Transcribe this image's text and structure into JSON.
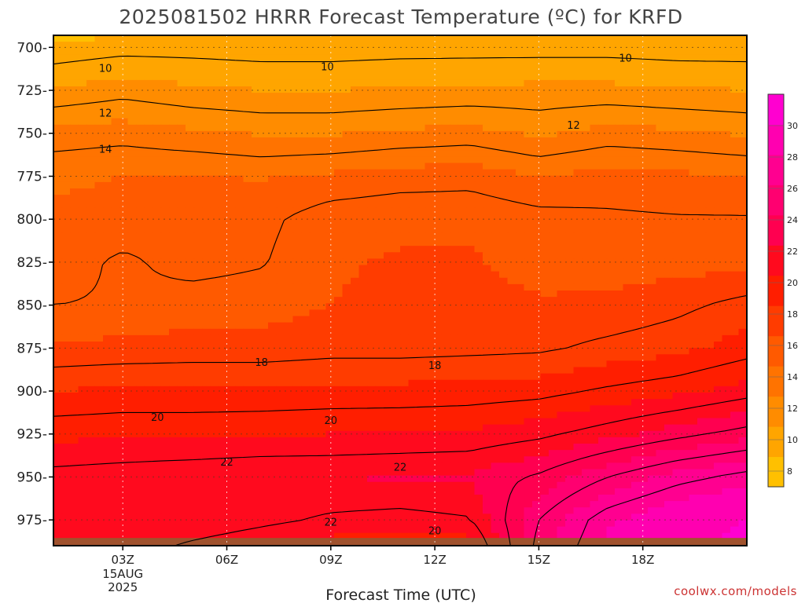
{
  "chart_data": {
    "type": "contour",
    "title": "2025081502 HRRR Forecast Temperature (ºC) for KRFD",
    "xlabel": "Forecast Time (UTC)",
    "ylabel": "",
    "credit": "coolwx.com/models",
    "x_hours": [
      1,
      21
    ],
    "x_ticks": [
      {
        "hour": 3,
        "label": "03Z",
        "sub": [
          "15AUG",
          "2025"
        ]
      },
      {
        "hour": 6,
        "label": "06Z"
      },
      {
        "hour": 9,
        "label": "09Z"
      },
      {
        "hour": 12,
        "label": "12Z"
      },
      {
        "hour": 15,
        "label": "15Z"
      },
      {
        "hour": 18,
        "label": "18Z"
      }
    ],
    "ylim": [
      693,
      990
    ],
    "y_ticks": [
      700,
      725,
      750,
      775,
      800,
      825,
      850,
      875,
      900,
      925,
      950,
      975
    ],
    "y_unit_suffix": "-",
    "colorbar": {
      "ticks": [
        8,
        10,
        12,
        14,
        16,
        18,
        20,
        22,
        24,
        26,
        28,
        30
      ],
      "min": 7,
      "max": 32,
      "colors": [
        "#FFC000",
        "#FFA500",
        "#FF8C00",
        "#FF7300",
        "#FF5A00",
        "#FF3C00",
        "#FF1E00",
        "#FF0A1E",
        "#FF0050",
        "#FF0070",
        "#FF0090",
        "#FF00B0",
        "#FF00D0"
      ]
    },
    "levels": [
      8,
      10,
      12,
      14,
      16,
      18,
      20,
      22,
      24,
      26,
      28
    ],
    "pressures": [
      690,
      700,
      725,
      750,
      775,
      800,
      825,
      850,
      875,
      900,
      925,
      950,
      975,
      990
    ],
    "hours": [
      1,
      3,
      5,
      7,
      9,
      11,
      13,
      15,
      17,
      19,
      21
    ],
    "temperature_grid": [
      [
        8.5,
        8.6,
        8.8,
        8.9,
        8.8,
        8.8,
        8.9,
        9.0,
        9.0,
        9.0,
        9.0
      ],
      [
        9.3,
        9.6,
        9.6,
        9.5,
        9.5,
        9.6,
        9.6,
        9.6,
        9.6,
        9.5,
        9.5
      ],
      [
        11.1,
        11.6,
        11.2,
        11.0,
        11.0,
        11.1,
        11.2,
        11.3,
        11.3,
        11.1,
        11.0
      ],
      [
        13.4,
        13.6,
        13.2,
        12.9,
        12.9,
        13.2,
        13.4,
        12.8,
        13.4,
        13.2,
        12.9
      ],
      [
        14.8,
        15.0,
        15.1,
        14.9,
        15.2,
        15.5,
        15.6,
        15.0,
        15.4,
        15.2,
        15.0
      ],
      [
        15.2,
        15.4,
        15.6,
        15.7,
        16.6,
        16.8,
        16.8,
        16.4,
        16.2,
        16.1,
        16.1
      ],
      [
        15.5,
        16.2,
        15.6,
        15.9,
        16.9,
        17.1,
        17.1,
        16.7,
        16.5,
        16.6,
        16.6
      ],
      [
        16.0,
        16.1,
        16.5,
        16.6,
        17.0,
        17.2,
        17.3,
        17.1,
        17.2,
        17.7,
        18.4
      ],
      [
        17.2,
        17.3,
        17.4,
        17.4,
        17.6,
        17.6,
        17.7,
        17.8,
        18.3,
        18.7,
        19.5
      ],
      [
        19.0,
        19.2,
        19.2,
        19.2,
        19.3,
        19.3,
        19.4,
        19.6,
        20.2,
        20.7,
        21.5
      ],
      [
        20.7,
        20.8,
        20.8,
        20.9,
        21.0,
        21.1,
        21.2,
        21.7,
        22.6,
        23.6,
        24.5
      ],
      [
        22.4,
        22.6,
        22.8,
        23.0,
        23.0,
        23.1,
        23.2,
        24.2,
        26.0,
        27.5,
        28.5
      ],
      [
        23.0,
        23.0,
        22.8,
        22.3,
        21.8,
        21.6,
        21.9,
        26.0,
        28.8,
        30.2,
        31.0
      ],
      [
        22.6,
        22.6,
        21.8,
        21.2,
        20.6,
        20.0,
        20.4,
        26.5,
        29.2,
        30.6,
        31.4
      ]
    ],
    "contour_labels": [
      {
        "value": "10",
        "hour": 2.5,
        "p": 712
      },
      {
        "value": "10",
        "hour": 8.9,
        "p": 711
      },
      {
        "value": "10",
        "hour": 17.5,
        "p": 706
      },
      {
        "value": "12",
        "hour": 2.5,
        "p": 738
      },
      {
        "value": "12",
        "hour": 16.0,
        "p": 745
      },
      {
        "value": "14",
        "hour": 2.5,
        "p": 759
      },
      {
        "value": "18",
        "hour": 7.0,
        "p": 883
      },
      {
        "value": "18",
        "hour": 12.0,
        "p": 885
      },
      {
        "value": "20",
        "hour": 4.0,
        "p": 915
      },
      {
        "value": "20",
        "hour": 9.0,
        "p": 917
      },
      {
        "value": "20",
        "hour": 12.0,
        "p": 981
      },
      {
        "value": "22",
        "hour": 6.0,
        "p": 941
      },
      {
        "value": "22",
        "hour": 11.0,
        "p": 944
      },
      {
        "value": "22",
        "hour": 9.0,
        "p": 976
      }
    ],
    "ground_color": "#A0522D"
  }
}
